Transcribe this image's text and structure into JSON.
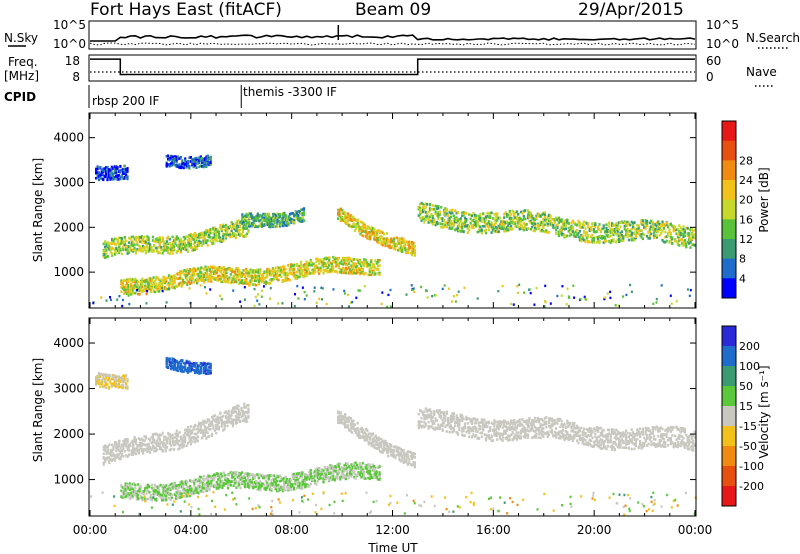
{
  "header": {
    "title": "Fort Hays East (fitACF)",
    "beam": "Beam 09",
    "date": "29/Apr/2015"
  },
  "noise_panel": {
    "left_label": "N.Sky",
    "right_label": "N.Search",
    "left_ticks": [
      "10^5",
      "10^0"
    ],
    "right_ticks": [
      "10^5",
      "10^0"
    ]
  },
  "freq_panel": {
    "left_label_line1": "Freq.",
    "left_label_line2": "[MHz]",
    "left_ticks": [
      "18",
      "8"
    ],
    "right_label": "Nave",
    "right_ticks": [
      "60",
      "0"
    ],
    "freq_steps": [
      {
        "t0": 0.0,
        "t1": 1.2,
        "mhz": 17.5
      },
      {
        "t0": 1.2,
        "t1": 13.0,
        "mhz": 10.5
      },
      {
        "t0": 13.0,
        "t1": 24.0,
        "mhz": 17.5
      }
    ]
  },
  "cpid_panel": {
    "label": "CPID",
    "segments": [
      {
        "start_hour": 0.0,
        "name": "rbsp 200 IF"
      },
      {
        "start_hour": 6.0,
        "name": "themis -3300 IF"
      }
    ]
  },
  "colors": {
    "power": [
      "#0000ff",
      "#1e6ccc",
      "#3a9a72",
      "#58c23a",
      "#c8d82a",
      "#f2c21a",
      "#f08a10",
      "#e85010",
      "#e81818"
    ],
    "velocity": [
      "#2a2ad8",
      "#1e6ccc",
      "#3a9a72",
      "#5ac83a",
      "#c8c8c0",
      "#f2c21a",
      "#f08a10",
      "#e85010",
      "#e81818"
    ]
  },
  "chart_data": [
    {
      "type": "heatmap",
      "name": "power",
      "ylabel": "Slant Range [km]",
      "yticks": [
        1000,
        2000,
        3000,
        4000
      ],
      "ylim": [
        200,
        4550
      ],
      "xlim": [
        0,
        24
      ],
      "colorbar": {
        "label": "Power [dB]",
        "ticks": [
          "4",
          "8",
          "12",
          "16",
          "20",
          "24",
          "28"
        ],
        "range": [
          0,
          32
        ]
      },
      "bands": [
        {
          "t0": 0.5,
          "t1": 6.3,
          "r0": 1480,
          "r1": 1950,
          "dr": 380,
          "v": 15
        },
        {
          "t0": 6.0,
          "t1": 8.5,
          "r0": 2150,
          "r1": 2350,
          "dr": 300,
          "v": 10
        },
        {
          "t0": 1.2,
          "t1": 11.5,
          "r0": 750,
          "r1": 1200,
          "dr": 350,
          "v": 17
        },
        {
          "t0": 9.8,
          "t1": 12.9,
          "r0": 2350,
          "r1": 1450,
          "dr": 300,
          "v": 18
        },
        {
          "t0": 13.0,
          "t1": 24.0,
          "r0": 2300,
          "r1": 1800,
          "dr": 450,
          "v": 14
        },
        {
          "t0": 0.2,
          "t1": 1.5,
          "r0": 3300,
          "r1": 3200,
          "dr": 300,
          "v": 4
        },
        {
          "t0": 3.0,
          "t1": 4.8,
          "r0": 3550,
          "r1": 3550,
          "dr": 250,
          "v": 5
        }
      ]
    },
    {
      "type": "heatmap",
      "name": "velocity",
      "ylabel": "Slant Range [km]",
      "xlabel": "Time UT",
      "yticks": [
        1000,
        2000,
        3000,
        4000
      ],
      "ylim": [
        200,
        4550
      ],
      "xlim": [
        0,
        24
      ],
      "xticks": [
        "00:00",
        "04:00",
        "08:00",
        "12:00",
        "16:00",
        "20:00",
        "00:00"
      ],
      "colorbar": {
        "label": "Velocity [m s⁻¹]",
        "ticks": [
          "200",
          "100",
          "50",
          "15",
          "-15",
          "-50",
          "-100",
          "-200"
        ],
        "range": [
          -250,
          250
        ]
      },
      "bands": [
        {
          "t0": 0.5,
          "t1": 6.3,
          "r0": 1500,
          "r1": 2450,
          "dr": 420,
          "v": 0
        },
        {
          "t0": 1.2,
          "t1": 11.5,
          "r0": 750,
          "r1": 1200,
          "dr": 350,
          "v": 30
        },
        {
          "t0": 9.8,
          "t1": 12.9,
          "r0": 2350,
          "r1": 1450,
          "dr": 300,
          "v": 0
        },
        {
          "t0": 13.0,
          "t1": 24.0,
          "r0": 2300,
          "r1": 1850,
          "dr": 450,
          "v": 0
        },
        {
          "t0": 0.2,
          "t1": 1.5,
          "r0": 3300,
          "r1": 3200,
          "dr": 300,
          "v": -25
        },
        {
          "t0": 3.0,
          "t1": 4.8,
          "r0": 3550,
          "r1": 3550,
          "dr": 250,
          "v": 180
        }
      ]
    }
  ]
}
